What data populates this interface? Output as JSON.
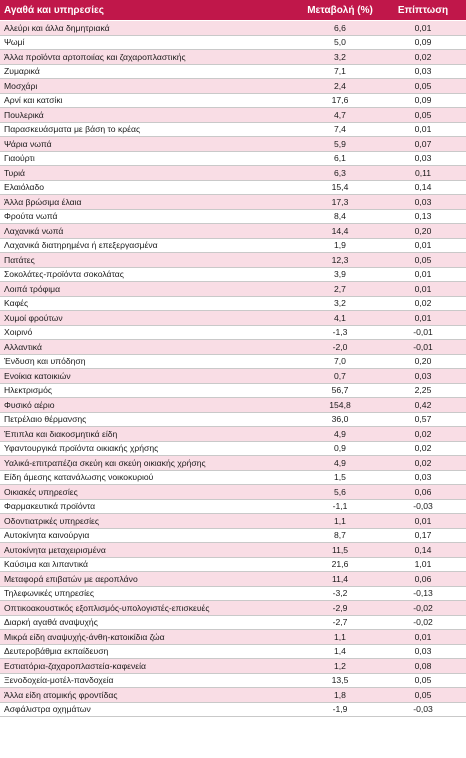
{
  "header": {
    "goods": "Αγαθά και υπηρεσίες",
    "change": "Μεταβολή (%)",
    "effect": "Επίπτωση"
  },
  "rows": [
    {
      "name": "Αλεύρι και άλλα δημητριακά",
      "change": "6,6",
      "effect": "0,01"
    },
    {
      "name": "Ψωμί",
      "change": "5,0",
      "effect": "0,09"
    },
    {
      "name": "Άλλα προϊόντα αρτοποιίας και ζαχαροπλαστικής",
      "change": "3,2",
      "effect": "0,02"
    },
    {
      "name": "Ζυμαρικά",
      "change": "7,1",
      "effect": "0,03"
    },
    {
      "name": "Μοσχάρι",
      "change": "2,4",
      "effect": "0,05"
    },
    {
      "name": "Αρνί και κατσίκι",
      "change": "17,6",
      "effect": "0,09"
    },
    {
      "name": "Πουλερικά",
      "change": "4,7",
      "effect": "0,05"
    },
    {
      "name": "Παρασκευάσματα με βάση το κρέας",
      "change": "7,4",
      "effect": "0,01"
    },
    {
      "name": "Ψάρια νωπά",
      "change": "5,9",
      "effect": "0,07"
    },
    {
      "name": "Γιαούρτι",
      "change": "6,1",
      "effect": "0,03"
    },
    {
      "name": "Τυριά",
      "change": "6,3",
      "effect": "0,11"
    },
    {
      "name": "Ελαιόλαδο",
      "change": "15,4",
      "effect": "0,14"
    },
    {
      "name": "Άλλα βρώσιμα έλαια",
      "change": "17,3",
      "effect": "0,03"
    },
    {
      "name": "Φρούτα νωπά",
      "change": "8,4",
      "effect": "0,13"
    },
    {
      "name": "Λαχανικά νωπά",
      "change": "14,4",
      "effect": "0,20"
    },
    {
      "name": "Λαχανικά διατηρημένα ή επεξεργασμένα",
      "change": "1,9",
      "effect": "0,01"
    },
    {
      "name": "Πατάτες",
      "change": "12,3",
      "effect": "0,05"
    },
    {
      "name": "Σοκολάτες-προϊόντα σοκολάτας",
      "change": "3,9",
      "effect": "0,01"
    },
    {
      "name": "Λοιπά τρόφιμα",
      "change": "2,7",
      "effect": "0,01"
    },
    {
      "name": "Καφές",
      "change": "3,2",
      "effect": "0,02"
    },
    {
      "name": "Χυμοί φρούτων",
      "change": "4,1",
      "effect": "0,01"
    },
    {
      "name": "Χοιρινό",
      "change": "-1,3",
      "effect": "-0,01"
    },
    {
      "name": "Αλλαντικά",
      "change": "-2,0",
      "effect": "-0,01"
    },
    {
      "name": "Ένδυση και υπόδηση",
      "change": "7,0",
      "effect": "0,20"
    },
    {
      "name": "Ενοίκια κατοικιών",
      "change": "0,7",
      "effect": "0,03"
    },
    {
      "name": "Ηλεκτρισμός",
      "change": "56,7",
      "effect": "2,25"
    },
    {
      "name": "Φυσικό αέριο",
      "change": "154,8",
      "effect": "0,42"
    },
    {
      "name": "Πετρέλαιο θέρμανσης",
      "change": "36,0",
      "effect": "0,57"
    },
    {
      "name": "Έπιπλα και διακοσμητικά είδη",
      "change": "4,9",
      "effect": "0,02"
    },
    {
      "name": "Υφαντουργικά προϊόντα οικιακής χρήσης",
      "change": "0,9",
      "effect": "0,02"
    },
    {
      "name": "Υαλικά-επιτραπέζια σκεύη και σκεύη οικιακής χρήσης",
      "change": "4,9",
      "effect": "0,02"
    },
    {
      "name": "Είδη άμεσης κατανάλωσης νοικοκυριού",
      "change": "1,5",
      "effect": "0,03"
    },
    {
      "name": "Οικιακές υπηρεσίες",
      "change": "5,6",
      "effect": "0,06"
    },
    {
      "name": "Φαρμακευτικά προϊόντα",
      "change": "-1,1",
      "effect": "-0,03"
    },
    {
      "name": "Οδοντιατρικές υπηρεσίες",
      "change": "1,1",
      "effect": "0,01"
    },
    {
      "name": "Αυτοκίνητα καινούργια",
      "change": "8,7",
      "effect": "0,17"
    },
    {
      "name": "Αυτοκίνητα μεταχειρισμένα",
      "change": "11,5",
      "effect": "0,14"
    },
    {
      "name": "Καύσιμα και λιπαντικά",
      "change": "21,6",
      "effect": "1,01"
    },
    {
      "name": "Μεταφορά επιβατών με αεροπλάνο",
      "change": "11,4",
      "effect": "0,06"
    },
    {
      "name": "Τηλεφωνικές υπηρεσίες",
      "change": "-3,2",
      "effect": "-0,13"
    },
    {
      "name": "Οπτικοακουστικός εξοπλισμός-υπολογιστές-επισκευές",
      "change": "-2,9",
      "effect": "-0,02"
    },
    {
      "name": "Διαρκή αγαθά αναψυχής",
      "change": "-2,7",
      "effect": "-0,02"
    },
    {
      "name": "Μικρά είδη αναψυχής-άνθη-κατοικίδια ζώα",
      "change": "1,1",
      "effect": "0,01"
    },
    {
      "name": "Δευτεροβάθμια εκπαίδευση",
      "change": "1,4",
      "effect": "0,03"
    },
    {
      "name": "Εστιατόρια-ζαχαροπλαστεία-καφενεία",
      "change": "1,2",
      "effect": "0,08"
    },
    {
      "name": "Ξενοδοχεία-μοτέλ-πανδοχεία",
      "change": "13,5",
      "effect": "0,05"
    },
    {
      "name": "Άλλα είδη ατομικής φροντίδας",
      "change": "1,8",
      "effect": "0,05"
    },
    {
      "name": "Ασφάλιστρα οχημάτων",
      "change": "-1,9",
      "effect": "-0,03"
    }
  ]
}
